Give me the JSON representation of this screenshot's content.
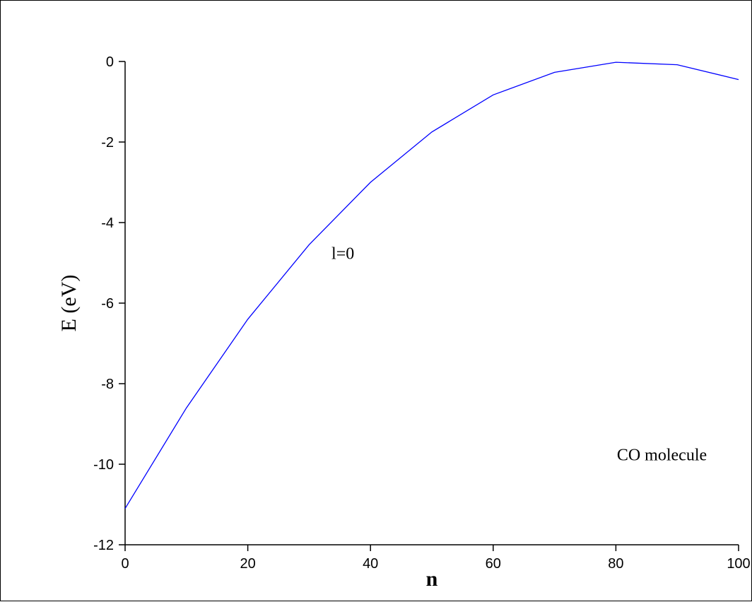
{
  "chart_data": {
    "type": "line",
    "xlabel": "n",
    "ylabel": "E (eV)",
    "xlim": [
      0,
      100
    ],
    "ylim": [
      -12,
      0
    ],
    "xticks": [
      0,
      20,
      40,
      60,
      80,
      100
    ],
    "yticks": [
      0,
      -2,
      -4,
      -6,
      -8,
      -10,
      -12
    ],
    "grid": false,
    "series": [
      {
        "color": "#0000ff",
        "x": [
          0,
          10,
          20,
          30,
          40,
          50,
          60,
          70,
          80,
          90,
          100
        ],
        "y": [
          -11.1,
          -8.6,
          -6.4,
          -4.55,
          -3.0,
          -1.75,
          -0.83,
          -0.27,
          -0.02,
          -0.08,
          -0.45
        ]
      }
    ],
    "annotations": [
      {
        "text": "l=0",
        "x": 35.5,
        "y": -4.9
      },
      {
        "text": "CO molecule",
        "x": 87.5,
        "y": -9.9
      }
    ]
  }
}
